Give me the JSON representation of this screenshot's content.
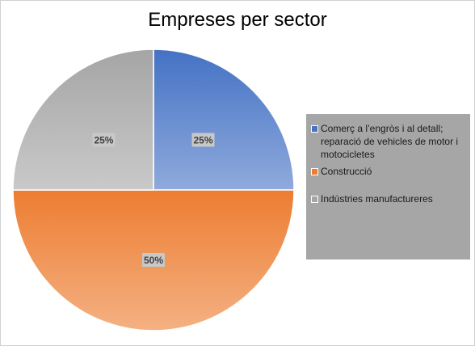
{
  "chart_data": {
    "type": "pie",
    "title": "Empreses per sector",
    "slices": [
      {
        "name": "Comerç a l’engròs i al detall; reparació de vehicles de motor i motocicletes",
        "value": 25,
        "label": "25%",
        "color_top": "#4472c4",
        "color_bottom": "#8faadc"
      },
      {
        "name": "Construcció",
        "value": 50,
        "label": "50%",
        "color_top": "#ed7d31",
        "color_bottom": "#f4b183"
      },
      {
        "name": "Indústries manufactureres",
        "value": 25,
        "label": "25%",
        "color_top": "#a5a5a5",
        "color_bottom": "#c9c9c9"
      }
    ],
    "start_angle": "top, clockwise",
    "legend_position": "right"
  },
  "colors": {
    "label_box": "#c8c8c8",
    "legend_bg": "#a6a6a6"
  }
}
